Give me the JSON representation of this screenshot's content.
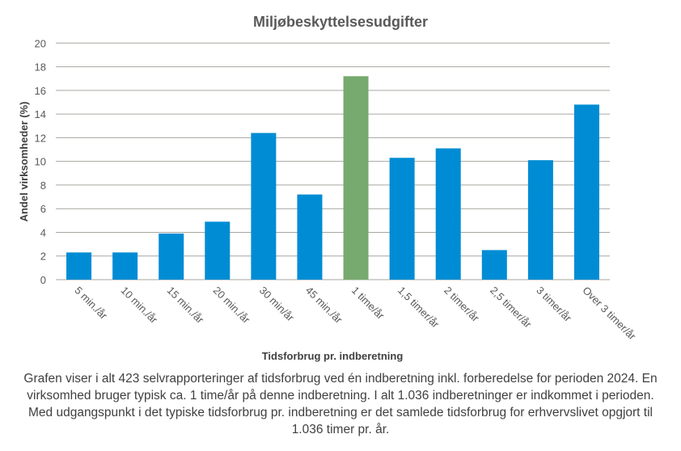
{
  "chart_data": {
    "type": "bar",
    "title": "Miljøbeskyttelsesudgifter",
    "xlabel": "Tidsforbrug pr. indberetning",
    "ylabel": "Andel virksomheder  (%)",
    "ylim": [
      0,
      20
    ],
    "yticks": [
      0,
      2,
      4,
      6,
      8,
      10,
      12,
      14,
      16,
      18,
      20
    ],
    "grid": true,
    "categories": [
      "5 min./år",
      "10 min./år",
      "15 min./år",
      "20 min./år",
      "30 min/år",
      "45 min./år",
      "1 time/år",
      "1,5 timer/år",
      "2 timer/år",
      "2,5 timer/år",
      "3 timer/år",
      "Over 3 timer/år"
    ],
    "values": [
      2.3,
      2.3,
      3.9,
      4.9,
      12.4,
      7.2,
      17.2,
      10.3,
      11.1,
      2.5,
      10.1,
      14.8
    ],
    "highlight_index": 6,
    "colors": {
      "bar": "#008CD4",
      "highlight": "#77AA6E",
      "grid": "#A6A6A0"
    }
  },
  "caption": "Grafen viser i alt 423 selvrapporteringer af tidsforbrug ved én indberetning inkl. forberedelse for perioden 2024. En virksomhed bruger typisk ca. 1 time/år på denne indberetning. I alt 1.036 indberetninger er indkommet i perioden. Med udgangspunkt i det typiske tidsforbrug pr. indberetning er det samlede tidsforbrug for erhvervslivet opgjort til 1.036 timer pr. år."
}
